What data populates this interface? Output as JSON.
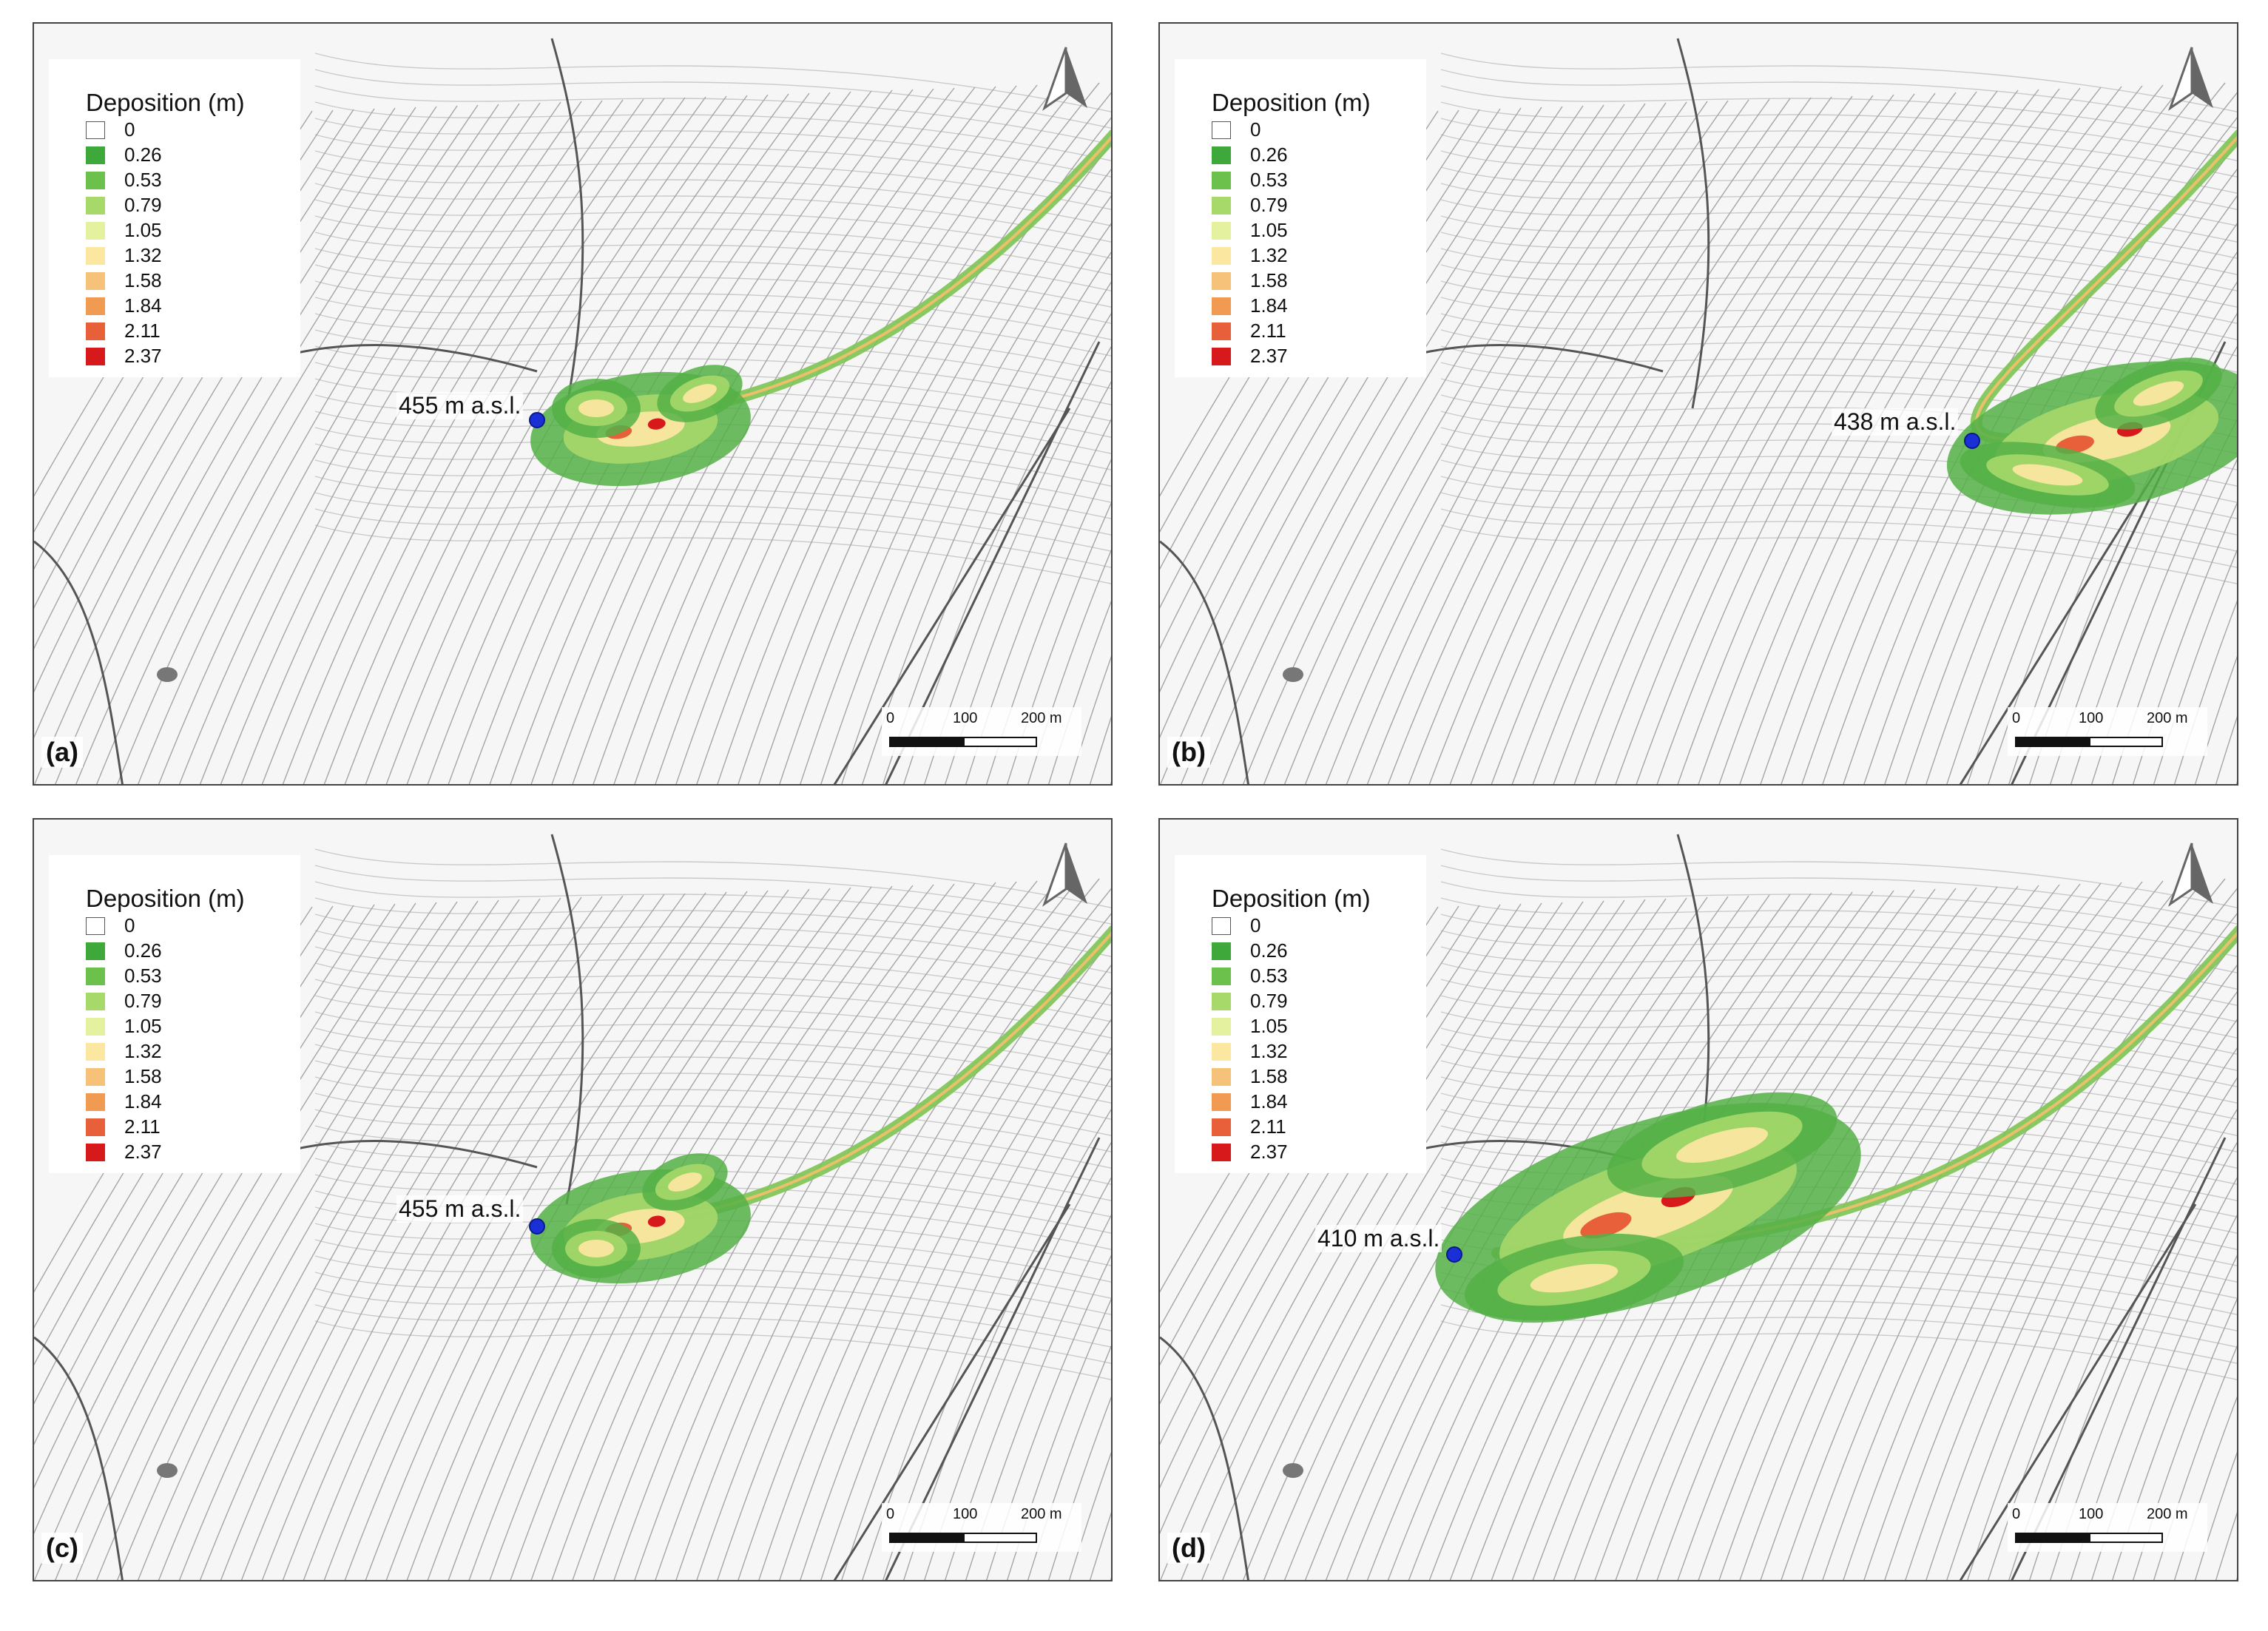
{
  "legend": {
    "title": "Deposition (m)",
    "classes": [
      {
        "label": "0",
        "color": "#ffffff"
      },
      {
        "label": "0.26",
        "color": "#3fa83a"
      },
      {
        "label": "0.53",
        "color": "#6cc04c"
      },
      {
        "label": "0.79",
        "color": "#a6d86a"
      },
      {
        "label": "1.05",
        "color": "#e4f2a0"
      },
      {
        "label": "1.32",
        "color": "#fbe7a0"
      },
      {
        "label": "1.58",
        "color": "#f6c27a"
      },
      {
        "label": "1.84",
        "color": "#f19a52"
      },
      {
        "label": "2.11",
        "color": "#e8603a"
      },
      {
        "label": "2.37",
        "color": "#d7191c"
      }
    ]
  },
  "scalebar": {
    "ticks": [
      "0",
      "100",
      "200 m"
    ]
  },
  "panels": [
    {
      "id": "a",
      "label": "(a)",
      "elevation_label": "455 m a.s.l."
    },
    {
      "id": "b",
      "label": "(b)",
      "elevation_label": "438 m a.s.l."
    },
    {
      "id": "c",
      "label": "(c)",
      "elevation_label": "455 m a.s.l."
    },
    {
      "id": "d",
      "label": "(d)",
      "elevation_label": "410 m a.s.l."
    }
  ],
  "colors": {
    "contour": "#8a8a8a",
    "road": "#555555",
    "point": "#1a2fd6"
  }
}
